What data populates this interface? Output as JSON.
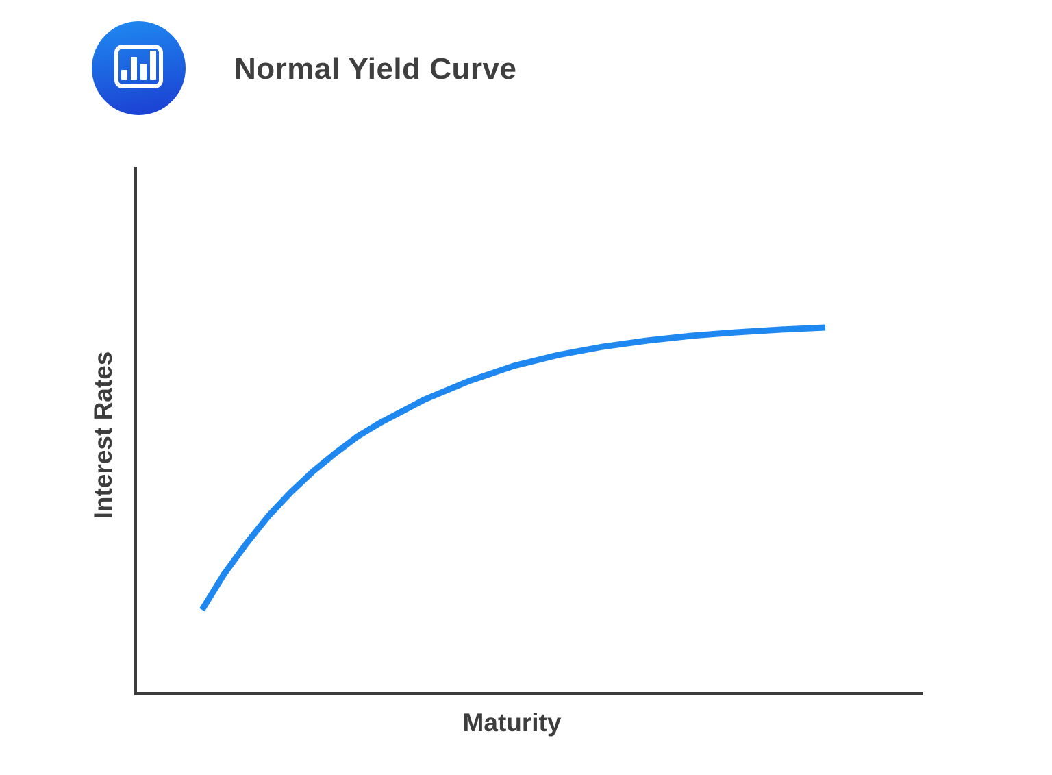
{
  "page": {
    "background": "#ffffff"
  },
  "header": {
    "title": "Normal Yield Curve",
    "logo": {
      "icon": "bar-chart-icon",
      "circle_color_top": "#1f8bf1",
      "circle_color_bottom": "#1b3cd1",
      "glyph_color": "#ffffff"
    }
  },
  "chart_data": {
    "type": "line",
    "title": "Normal Yield Curve",
    "xlabel": "Maturity",
    "ylabel": "Interest Rates",
    "x_range": [
      0,
      1
    ],
    "y_range": [
      0,
      1
    ],
    "grid": false,
    "legend": "none",
    "tick_labels": "none",
    "axis_color": "#3d3d3d",
    "series": [
      {
        "name": "Normal yield curve",
        "color": "#1e87f0",
        "shape": "concave increasing, steep rise then flattening toward a plateau",
        "points": [
          [
            0.0846,
            0.1591
          ],
          [
            0.1125,
            0.2269
          ],
          [
            0.1412,
            0.2856
          ],
          [
            0.1691,
            0.3377
          ],
          [
            0.1979,
            0.3833
          ],
          [
            0.2258,
            0.4224
          ],
          [
            0.2546,
            0.4576
          ],
          [
            0.2825,
            0.4889
          ],
          [
            0.3113,
            0.515
          ],
          [
            0.3679,
            0.5593
          ],
          [
            0.4246,
            0.5945
          ],
          [
            0.4813,
            0.6232
          ],
          [
            0.5379,
            0.6441
          ],
          [
            0.5946,
            0.6597
          ],
          [
            0.6513,
            0.6714
          ],
          [
            0.7079,
            0.6806
          ],
          [
            0.7646,
            0.6871
          ],
          [
            0.8213,
            0.6923
          ],
          [
            0.8779,
            0.6962
          ]
        ]
      }
    ]
  }
}
